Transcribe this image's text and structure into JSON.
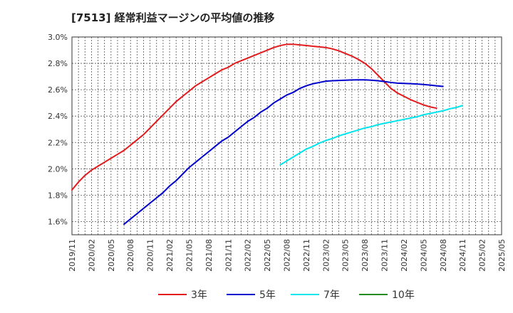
{
  "chart_data": {
    "type": "line",
    "title": "[7513]  経常利益マージンの平均値の推移",
    "xlabel": "",
    "ylabel": "",
    "ylim": [
      1.5,
      3.0
    ],
    "y_ticks": [
      "1.6%",
      "1.8%",
      "2.0%",
      "2.2%",
      "2.4%",
      "2.6%",
      "2.8%",
      "3.0%"
    ],
    "y_tick_values": [
      1.6,
      1.8,
      2.0,
      2.2,
      2.4,
      2.6,
      2.8,
      3.0
    ],
    "x_ticks": [
      "2019/11",
      "2020/02",
      "2020/05",
      "2020/08",
      "2020/11",
      "2021/02",
      "2021/05",
      "2021/08",
      "2021/11",
      "2022/02",
      "2022/05",
      "2022/08",
      "2022/11",
      "2023/02",
      "2023/05",
      "2023/08",
      "2023/11",
      "2024/02",
      "2024/05",
      "2024/08",
      "2024/11",
      "2025/02",
      "2025/05"
    ],
    "grid": true,
    "legend_position": "bottom",
    "series": [
      {
        "name": "3年",
        "color": "#e31a1c",
        "start": "2019/11",
        "values": [
          1.84,
          1.9,
          1.95,
          1.99,
          2.02,
          2.05,
          2.08,
          2.11,
          2.14,
          2.18,
          2.22,
          2.26,
          2.31,
          2.36,
          2.41,
          2.46,
          2.51,
          2.55,
          2.59,
          2.63,
          2.66,
          2.69,
          2.72,
          2.75,
          2.77,
          2.8,
          2.82,
          2.84,
          2.86,
          2.88,
          2.9,
          2.92,
          2.935,
          2.945,
          2.945,
          2.94,
          2.935,
          2.93,
          2.925,
          2.92,
          2.91,
          2.895,
          2.875,
          2.855,
          2.83,
          2.8,
          2.76,
          2.71,
          2.66,
          2.61,
          2.575,
          2.55,
          2.525,
          2.505,
          2.485,
          2.47,
          2.46
        ]
      },
      {
        "name": "5年",
        "color": "#0000cd",
        "start": "2020/07",
        "values": [
          1.58,
          1.62,
          1.66,
          1.7,
          1.74,
          1.78,
          1.82,
          1.87,
          1.91,
          1.96,
          2.01,
          2.05,
          2.09,
          2.13,
          2.17,
          2.21,
          2.24,
          2.28,
          2.32,
          2.36,
          2.39,
          2.43,
          2.46,
          2.5,
          2.53,
          2.56,
          2.58,
          2.61,
          2.63,
          2.645,
          2.655,
          2.665,
          2.668,
          2.67,
          2.672,
          2.674,
          2.675,
          2.675,
          2.672,
          2.668,
          2.662,
          2.655,
          2.65,
          2.648,
          2.646,
          2.643,
          2.64,
          2.635,
          2.63,
          2.625
        ]
      },
      {
        "name": "7年",
        "color": "#00e5ee",
        "start": "2022/07",
        "values": [
          2.03,
          2.06,
          2.09,
          2.12,
          2.15,
          2.17,
          2.195,
          2.215,
          2.23,
          2.25,
          2.265,
          2.28,
          2.295,
          2.31,
          2.32,
          2.335,
          2.345,
          2.355,
          2.365,
          2.375,
          2.385,
          2.395,
          2.41,
          2.42,
          2.43,
          2.44,
          2.455,
          2.465,
          2.48
        ]
      },
      {
        "name": "10年",
        "color": "#228b22",
        "start": "2024/11",
        "values": []
      }
    ]
  }
}
